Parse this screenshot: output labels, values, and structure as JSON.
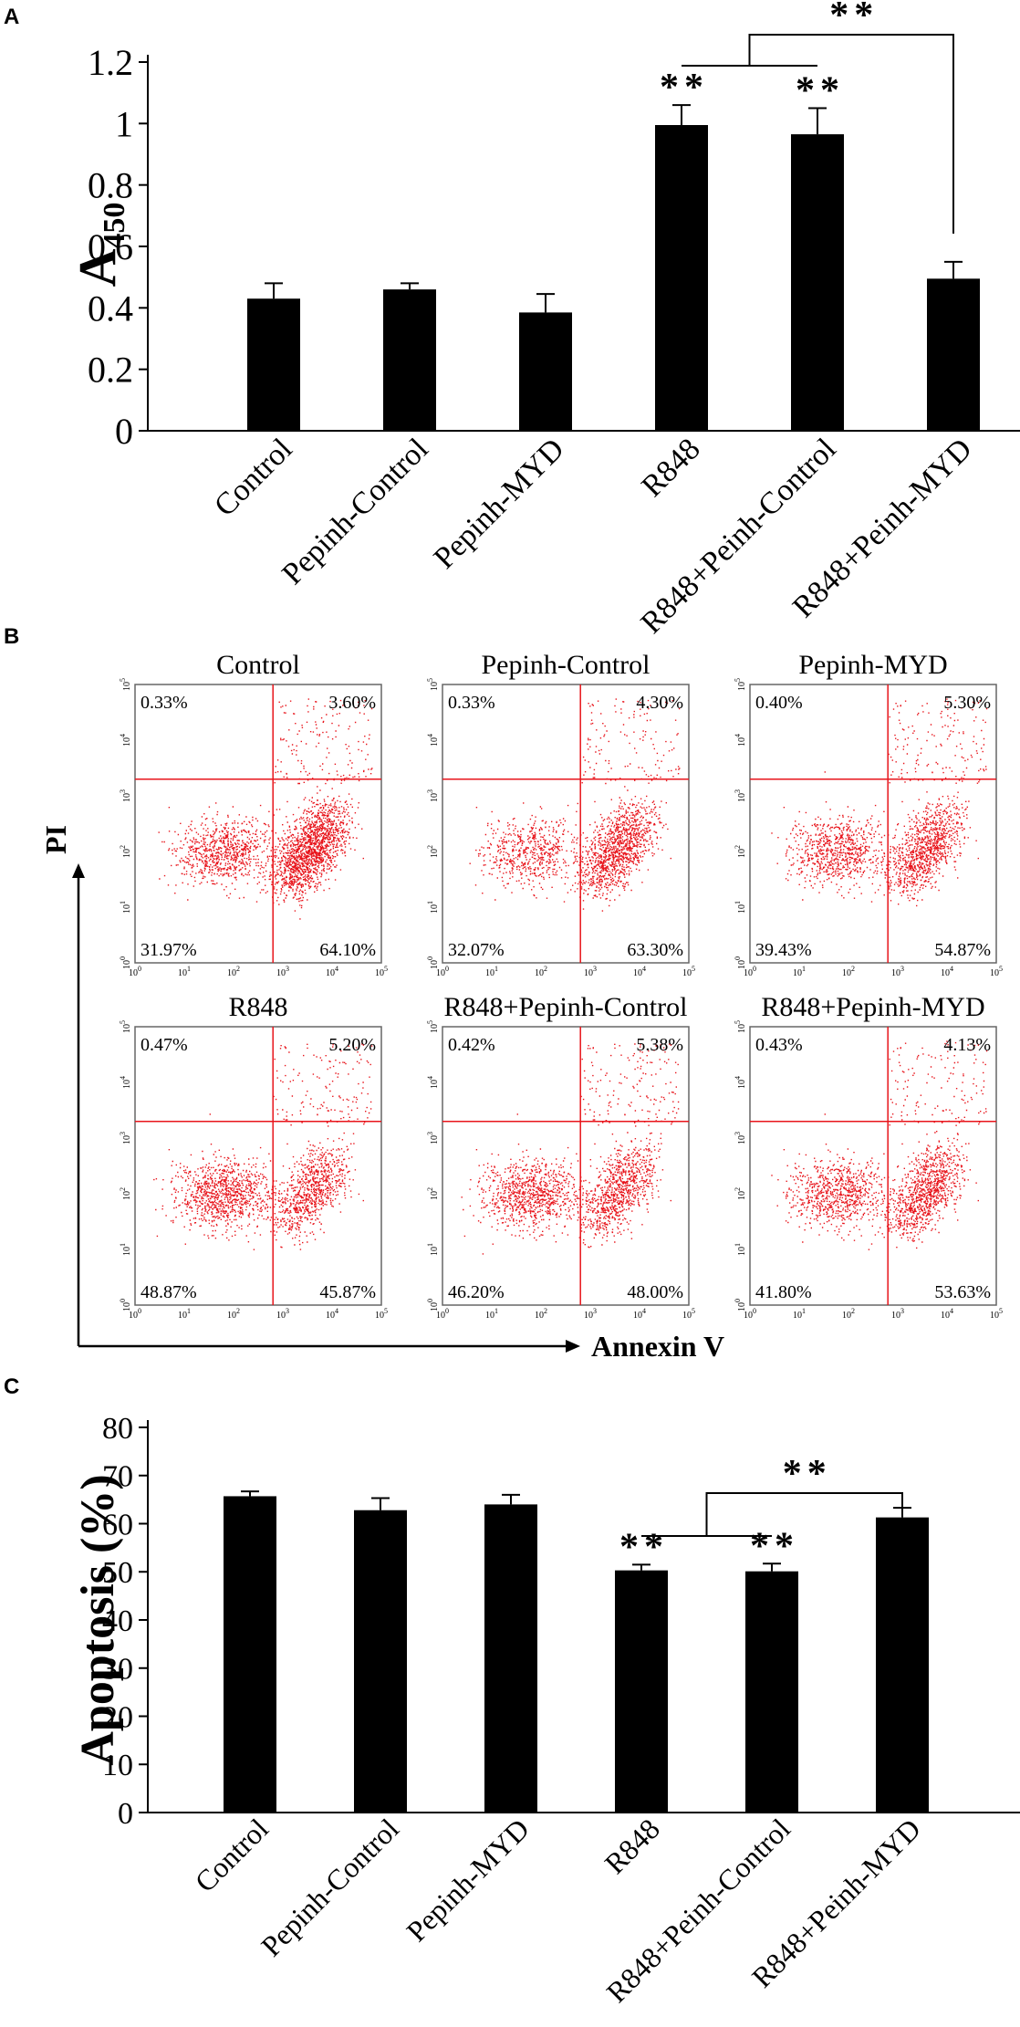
{
  "panels": {
    "a_letter": "A",
    "b_letter": "B",
    "c_letter": "C"
  },
  "chart_data": [
    {
      "type": "bar",
      "panel": "A",
      "title": "",
      "ylabel": "A",
      "ylabel_sub": "450",
      "categories": [
        "Control",
        "Pepinh-Control",
        "Pepinh-MYD",
        "R848",
        "R848+Peinh-Control",
        "R848+Peinh-MYD"
      ],
      "values": [
        0.43,
        0.46,
        0.385,
        0.995,
        0.965,
        0.495
      ],
      "errors": [
        0.05,
        0.02,
        0.06,
        0.065,
        0.085,
        0.055
      ],
      "ylim": [
        0,
        1.2
      ],
      "yticks": [
        "0",
        "0.2",
        "0.4",
        "0.6",
        "0.8",
        "1",
        "1.2"
      ],
      "significance": {
        "bar_stars": [
          "",
          "",
          "",
          "**",
          "**",
          ""
        ],
        "bracket": "**"
      }
    },
    {
      "type": "scatter",
      "panel": "B",
      "xlabel": "Annexin V",
      "ylabel": "PI",
      "decades": [
        "0",
        "1",
        "2",
        "3",
        "4",
        "5"
      ],
      "plots": [
        {
          "title": "Control",
          "ul": "0.33%",
          "ur": "3.60%",
          "ll": "31.97%",
          "lr": "64.10%"
        },
        {
          "title": "Pepinh-Control",
          "ul": "0.33%",
          "ur": "4.30%",
          "ll": "32.07%",
          "lr": "63.30%"
        },
        {
          "title": "Pepinh-MYD",
          "ul": "0.40%",
          "ur": "5.30%",
          "ll": "39.43%",
          "lr": "54.87%"
        },
        {
          "title": "R848",
          "ul": "0.47%",
          "ur": "5.20%",
          "ll": "48.87%",
          "lr": "45.87%"
        },
        {
          "title": "R848+Pepinh-Control",
          "ul": "0.42%",
          "ur": "5.38%",
          "ll": "46.20%",
          "lr": "48.00%"
        },
        {
          "title": "R848+Pepinh-MYD",
          "ul": "0.43%",
          "ur": "4.13%",
          "ll": "41.80%",
          "lr": "53.63%"
        }
      ]
    },
    {
      "type": "bar",
      "panel": "C",
      "title": "",
      "ylabel": "Apoptosis (%)",
      "categories": [
        "Control",
        "Pepinh-Control",
        "Pepinh-MYD",
        "R848",
        "R848+Peinh-Control",
        "R848+Peinh-MYD"
      ],
      "values": [
        65.7,
        62.8,
        64.0,
        50.3,
        50.1,
        61.3
      ],
      "errors": [
        1.0,
        2.5,
        2.0,
        1.2,
        1.6,
        2.0
      ],
      "ylim": [
        0,
        80
      ],
      "yticks": [
        "0",
        "10",
        "20",
        "30",
        "40",
        "50",
        "60",
        "70",
        "80"
      ],
      "significance": {
        "bar_stars": [
          "",
          "",
          "",
          "**",
          "**",
          ""
        ],
        "bracket": "**"
      }
    }
  ],
  "colors": {
    "bar": "#000000",
    "dot": "#e8141b",
    "gate": "#e8141b",
    "axis": "#000000"
  }
}
